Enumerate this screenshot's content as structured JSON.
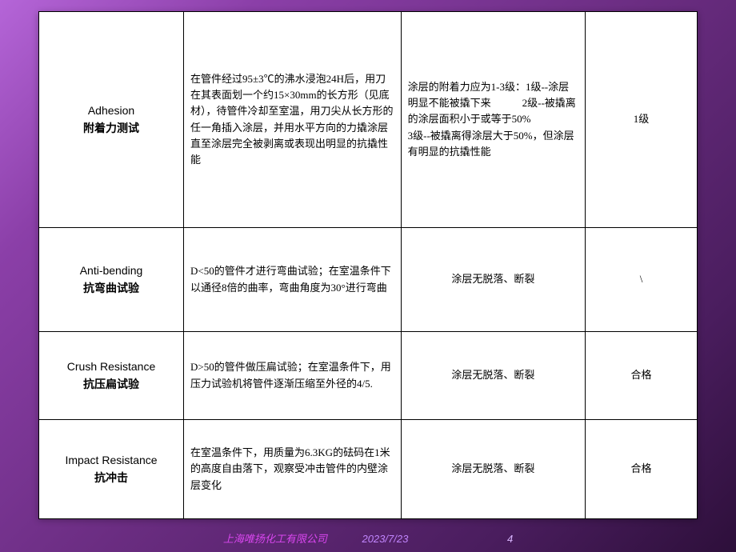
{
  "rows": [
    {
      "name_en": "Adhesion",
      "name_zh": "附着力测试",
      "method": "在管件经过95±3℃的沸水浸泡24H后，用刀在其表面划一个约15×30mm的长方形（见底材），待管件冷却至室温，用刀尖从长方形的任一角插入涂层，并用水平方向的力撬涂层直至涂层完全被剥离或表现出明显的抗撬性能",
      "standard": "涂层的附着力应为1-3级：1级--涂层明显不能被撬下来　　　2级--被撬离的涂层面积小于或等于50%\n3级--被撬离得涂层大于50%，但涂层有明显的抗撬性能",
      "result": "1级"
    },
    {
      "name_en": "Anti-bending",
      "name_zh": "抗弯曲试验",
      "method": "D<50的管件才进行弯曲试验；在室温条件下以通径8倍的曲率，弯曲角度为30°进行弯曲",
      "standard": "涂层无脱落、断裂",
      "result": "\\"
    },
    {
      "name_en": "Crush Resistance",
      "name_zh": "抗压扁试验",
      "method": "D>50的管件做压扁试验；在室温条件下，用压力试验机将管件逐渐压缩至外径的4/5.",
      "standard": "涂层无脱落、断裂",
      "result": "合格"
    },
    {
      "name_en": "Impact Resistance",
      "name_zh": "抗冲击",
      "method": "在室温条件下，用质量为6.3KG的砝码在1米的高度自由落下，观察受冲击管件的内壁涂层变化",
      "standard": "涂层无脱落、断裂",
      "result": "合格"
    }
  ],
  "footer": {
    "company": "上海唯扬化工有限公司",
    "date": "2023/7/23",
    "page": "4"
  },
  "colors": {
    "border": "#000000",
    "bg": "#ffffff",
    "footer_company": "#d946ef",
    "footer_date": "#c084fc",
    "footer_page": "#d8b4fe"
  }
}
